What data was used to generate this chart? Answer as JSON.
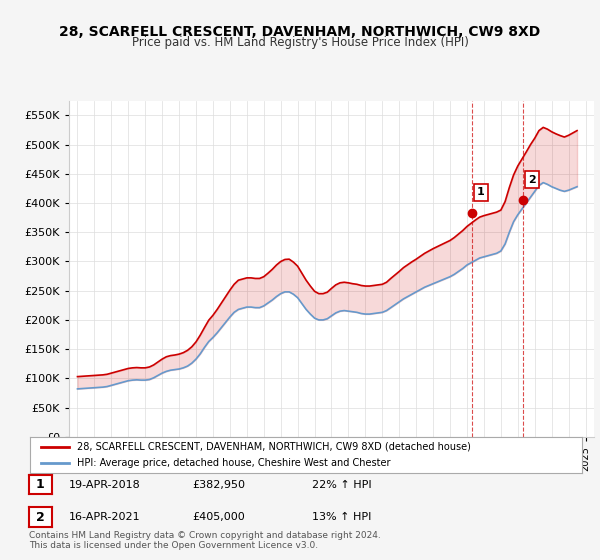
{
  "title": "28, SCARFELL CRESCENT, DAVENHAM, NORTHWICH, CW9 8XD",
  "subtitle": "Price paid vs. HM Land Registry's House Price Index (HPI)",
  "ylim": [
    0,
    575000
  ],
  "yticks": [
    0,
    50000,
    100000,
    150000,
    200000,
    250000,
    300000,
    350000,
    400000,
    450000,
    500000,
    550000
  ],
  "ytick_labels": [
    "£0",
    "£50K",
    "£100K",
    "£150K",
    "£200K",
    "£250K",
    "£300K",
    "£350K",
    "£400K",
    "£450K",
    "£500K",
    "£550K"
  ],
  "xlim_start": 1994.5,
  "xlim_end": 2025.5,
  "background_color": "#f5f5f5",
  "plot_background": "#ffffff",
  "grid_color": "#dddddd",
  "red_line_color": "#cc0000",
  "blue_line_color": "#6699cc",
  "marker1_date": 2018.3,
  "marker1_value": 382950,
  "marker1_label": "1",
  "marker2_date": 2021.3,
  "marker2_value": 405000,
  "marker2_label": "2",
  "sale1_date": "19-APR-2018",
  "sale1_price": "£382,950",
  "sale1_hpi": "22% ↑ HPI",
  "sale2_date": "16-APR-2021",
  "sale2_price": "£405,000",
  "sale2_hpi": "13% ↑ HPI",
  "legend1": "28, SCARFELL CRESCENT, DAVENHAM, NORTHWICH, CW9 8XD (detached house)",
  "legend2": "HPI: Average price, detached house, Cheshire West and Chester",
  "footer": "Contains HM Land Registry data © Crown copyright and database right 2024.\nThis data is licensed under the Open Government Licence v3.0.",
  "hpi_data": {
    "years": [
      1995,
      1995.25,
      1995.5,
      1995.75,
      1996,
      1996.25,
      1996.5,
      1996.75,
      1997,
      1997.25,
      1997.5,
      1997.75,
      1998,
      1998.25,
      1998.5,
      1998.75,
      1999,
      1999.25,
      1999.5,
      1999.75,
      2000,
      2000.25,
      2000.5,
      2000.75,
      2001,
      2001.25,
      2001.5,
      2001.75,
      2002,
      2002.25,
      2002.5,
      2002.75,
      2003,
      2003.25,
      2003.5,
      2003.75,
      2004,
      2004.25,
      2004.5,
      2004.75,
      2005,
      2005.25,
      2005.5,
      2005.75,
      2006,
      2006.25,
      2006.5,
      2006.75,
      2007,
      2007.25,
      2007.5,
      2007.75,
      2008,
      2008.25,
      2008.5,
      2008.75,
      2009,
      2009.25,
      2009.5,
      2009.75,
      2010,
      2010.25,
      2010.5,
      2010.75,
      2011,
      2011.25,
      2011.5,
      2011.75,
      2012,
      2012.25,
      2012.5,
      2012.75,
      2013,
      2013.25,
      2013.5,
      2013.75,
      2014,
      2014.25,
      2014.5,
      2014.75,
      2015,
      2015.25,
      2015.5,
      2015.75,
      2016,
      2016.25,
      2016.5,
      2016.75,
      2017,
      2017.25,
      2017.5,
      2017.75,
      2018,
      2018.25,
      2018.5,
      2018.75,
      2019,
      2019.25,
      2019.5,
      2019.75,
      2020,
      2020.25,
      2020.5,
      2020.75,
      2021,
      2021.25,
      2021.5,
      2021.75,
      2022,
      2022.25,
      2022.5,
      2022.75,
      2023,
      2023.25,
      2023.5,
      2023.75,
      2024,
      2024.25,
      2024.5
    ],
    "values": [
      82000,
      82500,
      83000,
      83500,
      84000,
      84500,
      85000,
      86000,
      88000,
      90000,
      92000,
      94000,
      96000,
      97000,
      97500,
      97000,
      97000,
      98000,
      101000,
      105000,
      109000,
      112000,
      114000,
      115000,
      116000,
      118000,
      121000,
      126000,
      133000,
      142000,
      153000,
      163000,
      170000,
      178000,
      187000,
      196000,
      205000,
      213000,
      218000,
      220000,
      222000,
      222000,
      221000,
      221000,
      224000,
      229000,
      234000,
      240000,
      245000,
      248000,
      248000,
      244000,
      238000,
      228000,
      218000,
      210000,
      203000,
      200000,
      200000,
      202000,
      207000,
      212000,
      215000,
      216000,
      215000,
      214000,
      213000,
      211000,
      210000,
      210000,
      211000,
      212000,
      213000,
      216000,
      221000,
      226000,
      231000,
      236000,
      240000,
      244000,
      248000,
      252000,
      256000,
      259000,
      262000,
      265000,
      268000,
      271000,
      274000,
      278000,
      283000,
      288000,
      294000,
      298000,
      302000,
      306000,
      308000,
      310000,
      312000,
      314000,
      318000,
      330000,
      350000,
      368000,
      380000,
      390000,
      400000,
      410000,
      420000,
      430000,
      435000,
      432000,
      428000,
      425000,
      422000,
      420000,
      422000,
      425000,
      428000
    ]
  },
  "property_data": {
    "years": [
      1995,
      1995.25,
      1995.5,
      1995.75,
      1996,
      1996.25,
      1996.5,
      1996.75,
      1997,
      1997.25,
      1997.5,
      1997.75,
      1998,
      1998.25,
      1998.5,
      1998.75,
      1999,
      1999.25,
      1999.5,
      1999.75,
      2000,
      2000.25,
      2000.5,
      2000.75,
      2001,
      2001.25,
      2001.5,
      2001.75,
      2002,
      2002.25,
      2002.5,
      2002.75,
      2003,
      2003.25,
      2003.5,
      2003.75,
      2004,
      2004.25,
      2004.5,
      2004.75,
      2005,
      2005.25,
      2005.5,
      2005.75,
      2006,
      2006.25,
      2006.5,
      2006.75,
      2007,
      2007.25,
      2007.5,
      2007.75,
      2008,
      2008.25,
      2008.5,
      2008.75,
      2009,
      2009.25,
      2009.5,
      2009.75,
      2010,
      2010.25,
      2010.5,
      2010.75,
      2011,
      2011.25,
      2011.5,
      2011.75,
      2012,
      2012.25,
      2012.5,
      2012.75,
      2013,
      2013.25,
      2013.5,
      2013.75,
      2014,
      2014.25,
      2014.5,
      2014.75,
      2015,
      2015.25,
      2015.5,
      2015.75,
      2016,
      2016.25,
      2016.5,
      2016.75,
      2017,
      2017.25,
      2017.5,
      2017.75,
      2018,
      2018.25,
      2018.5,
      2018.75,
      2019,
      2019.25,
      2019.5,
      2019.75,
      2020,
      2020.25,
      2020.5,
      2020.75,
      2021,
      2021.25,
      2021.5,
      2021.75,
      2022,
      2022.25,
      2022.5,
      2022.75,
      2023,
      2023.25,
      2023.5,
      2023.75,
      2024,
      2024.25,
      2024.5
    ],
    "values": [
      103000,
      103500,
      104000,
      104500,
      105000,
      105500,
      106000,
      107000,
      109000,
      111000,
      113000,
      115000,
      117000,
      118000,
      118500,
      118000,
      118000,
      119500,
      123000,
      128000,
      133000,
      137000,
      139000,
      140000,
      141500,
      144000,
      148000,
      154000,
      162500,
      174000,
      187000,
      199500,
      208000,
      218000,
      229000,
      240000,
      251000,
      261000,
      268000,
      270000,
      272000,
      272000,
      271000,
      271000,
      274000,
      280000,
      286500,
      294000,
      300000,
      303500,
      304000,
      299000,
      292000,
      280000,
      268000,
      258000,
      249000,
      245000,
      245000,
      247500,
      254000,
      260000,
      263500,
      264500,
      263500,
      262000,
      261000,
      259000,
      258000,
      258000,
      259000,
      260000,
      261000,
      264500,
      271000,
      277000,
      283000,
      289500,
      294500,
      299500,
      304000,
      309000,
      314000,
      318000,
      322000,
      325500,
      329000,
      332500,
      336000,
      341000,
      347000,
      353000,
      360000,
      365500,
      371000,
      376000,
      378500,
      380500,
      382500,
      384500,
      388000,
      402500,
      426500,
      448000,
      463500,
      475500,
      487500,
      500000,
      511000,
      524000,
      529500,
      526500,
      522000,
      518500,
      515500,
      513000,
      516000,
      520000,
      524000
    ]
  }
}
